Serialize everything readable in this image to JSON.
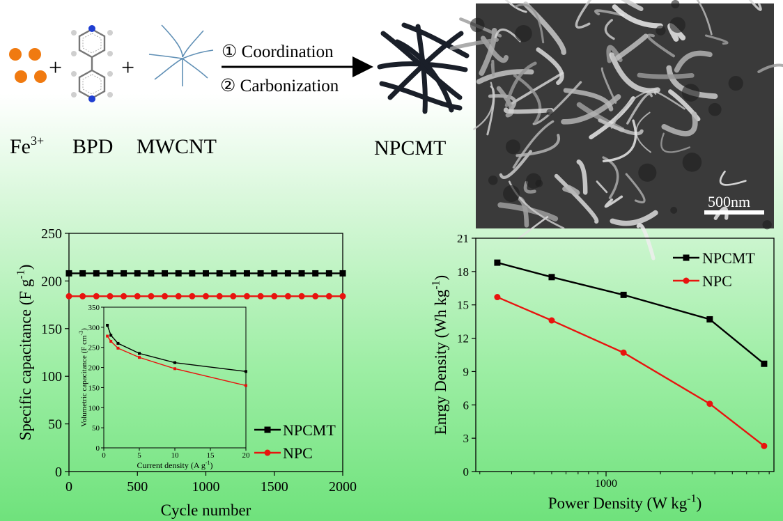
{
  "scheme": {
    "fe_label": "Fe",
    "fe_superscript": "3+",
    "bpd_label": "BPD",
    "mwcnt_label": "MWCNT",
    "step1": "① Coordination",
    "step2": "② Carbonization",
    "product_label": "NPCMT",
    "sem_scalebar": "500nm",
    "colors": {
      "fe_dot": "#f07a10",
      "cnt_line": "#5f8fb5",
      "product": "#1a1f29",
      "nitrogen": "#1f3ed1"
    }
  },
  "chart_data": [
    {
      "id": "cycling",
      "type": "line",
      "xlabel": "Cycle number",
      "ylabel": "Specific capacitance (F g",
      "ylabel_sup": "-1",
      "ylabel_end": ")",
      "xlim": [
        0,
        2000
      ],
      "ylim": [
        0,
        250
      ],
      "xticks": [
        0,
        500,
        1000,
        1500,
        2000
      ],
      "yticks": [
        0,
        50,
        100,
        150,
        200,
        250
      ],
      "x": [
        0,
        100,
        200,
        300,
        400,
        500,
        600,
        700,
        800,
        900,
        1000,
        1100,
        1200,
        1300,
        1400,
        1500,
        1600,
        1700,
        1800,
        1900,
        2000
      ],
      "series": [
        {
          "name": "NPCMT",
          "color": "#000000",
          "marker": "square",
          "values": [
            208,
            208,
            208,
            208,
            208,
            208,
            208,
            208,
            208,
            208,
            208,
            208,
            208,
            208,
            208,
            208,
            208,
            208,
            208,
            208,
            208
          ]
        },
        {
          "name": "NPC",
          "color": "#e8130e",
          "marker": "circle",
          "values": [
            184,
            184,
            184,
            184,
            184,
            184,
            184,
            184,
            184,
            184,
            184,
            184,
            184,
            184,
            184,
            184,
            184,
            184,
            184,
            184,
            184
          ]
        }
      ],
      "legend": "bottom-right",
      "inset": {
        "type": "line",
        "xlabel": "Current density (A g",
        "xlabel_sup": "-1",
        "xlabel_end": ")",
        "ylabel": "Volumetric capacitance (F cm",
        "ylabel_sup": "-3",
        "ylabel_end": ")",
        "xlim": [
          0,
          20
        ],
        "ylim": [
          0,
          350
        ],
        "xticks": [
          0,
          5,
          10,
          15,
          20
        ],
        "yticks": [
          0,
          50,
          100,
          150,
          200,
          250,
          300,
          350
        ],
        "x": [
          0.5,
          1,
          2,
          5,
          10,
          20
        ],
        "series": [
          {
            "name": "NPCMT",
            "color": "#000000",
            "values": [
              305,
              280,
              260,
              235,
              212,
              190
            ]
          },
          {
            "name": "NPC",
            "color": "#e8130e",
            "values": [
              278,
              265,
              248,
              225,
              197,
              155
            ]
          }
        ]
      }
    },
    {
      "id": "ragone",
      "type": "line",
      "xlabel": "Power Density (W kg",
      "xlabel_sup": "-1",
      "xlabel_end": ")",
      "ylabel": "Enrgy Density (Wh kg",
      "ylabel_sup": "-1",
      "ylabel_end": ")",
      "xscale": "log",
      "xlim": [
        190,
        8500
      ],
      "ylim": [
        0,
        21
      ],
      "xticks": [
        1000
      ],
      "yticks": [
        0,
        3,
        6,
        9,
        12,
        15,
        18,
        21
      ],
      "series": [
        {
          "name": "NPCMT",
          "color": "#000000",
          "marker": "square",
          "x": [
            250,
            500,
            1250,
            3750,
            7500
          ],
          "values": [
            18.8,
            17.5,
            15.9,
            13.7,
            9.7
          ]
        },
        {
          "name": "NPC",
          "color": "#e8130e",
          "marker": "circle",
          "x": [
            250,
            500,
            1250,
            3750,
            7500
          ],
          "values": [
            15.7,
            13.6,
            10.7,
            6.1,
            2.3
          ]
        }
      ],
      "legend": "top-right"
    }
  ]
}
